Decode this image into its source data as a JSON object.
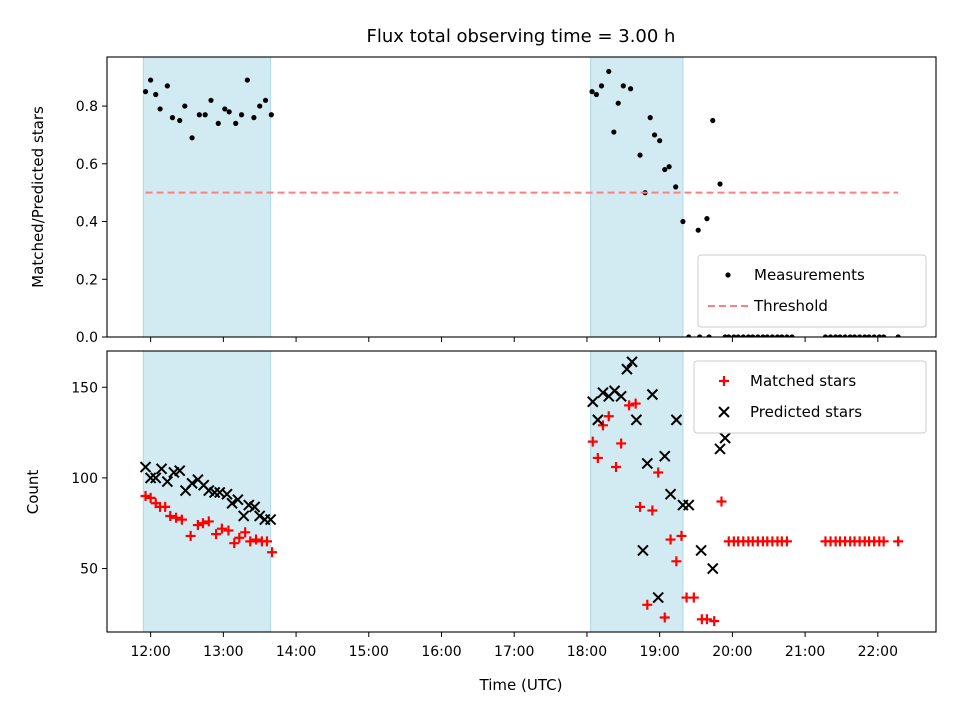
{
  "chart_data": [
    {
      "type": "scatter",
      "title": "Flux total observing time = 3.00 h",
      "ylabel": "Matched/Predicted stars",
      "xlim": [
        11.4,
        22.8
      ],
      "ylim": [
        0.0,
        0.97
      ],
      "yticks": [
        "0.0",
        "0.2",
        "0.4",
        "0.6",
        "0.8"
      ],
      "ytick_values": [
        0.0,
        0.2,
        0.4,
        0.6,
        0.8
      ],
      "shaded_intervals": [
        [
          11.9,
          13.65
        ],
        [
          18.05,
          19.32
        ]
      ],
      "shade_color": "#add8e6",
      "legend_position": "lower right",
      "series": [
        {
          "name": "Measurements",
          "marker": "dot",
          "color": "#000000",
          "x": [
            11.93,
            12.0,
            12.07,
            12.13,
            12.23,
            12.3,
            12.4,
            12.47,
            12.57,
            12.67,
            12.75,
            12.83,
            12.93,
            13.02,
            13.08,
            13.17,
            13.25,
            13.33,
            13.42,
            13.5,
            13.58,
            13.66,
            18.07,
            18.13,
            18.2,
            18.3,
            18.37,
            18.43,
            18.5,
            18.6,
            18.73,
            18.8,
            18.87,
            18.93,
            19.0,
            19.07,
            19.13,
            19.22,
            19.32,
            19.4,
            19.53,
            19.65,
            19.73,
            19.83,
            19.9
          ],
          "y": [
            0.85,
            0.89,
            0.84,
            0.79,
            0.87,
            0.76,
            0.75,
            0.8,
            0.69,
            0.77,
            0.77,
            0.82,
            0.74,
            0.79,
            0.78,
            0.74,
            0.77,
            0.89,
            0.76,
            0.8,
            0.82,
            0.77,
            0.85,
            0.84,
            0.87,
            0.92,
            0.71,
            0.81,
            0.87,
            0.86,
            0.63,
            0.5,
            0.76,
            0.7,
            0.68,
            0.58,
            0.59,
            0.52,
            0.4,
            0.0,
            0.37,
            0.41,
            0.75,
            0.53,
            0.0
          ]
        },
        {
          "name": "Measurements",
          "marker": "dot",
          "color": "#000000",
          "x": [
            19.55,
            19.68,
            19.95,
            20.02,
            20.08,
            20.15,
            20.22,
            20.28,
            20.35,
            20.42,
            20.48,
            20.55,
            20.62,
            20.68,
            20.75,
            20.82,
            21.28,
            21.35,
            21.42,
            21.48,
            21.55,
            21.62,
            21.68,
            21.75,
            21.82,
            21.88,
            21.95,
            22.02,
            22.08,
            22.28
          ],
          "y": [
            0,
            0,
            0,
            0,
            0,
            0,
            0,
            0,
            0,
            0,
            0,
            0,
            0,
            0,
            0,
            0,
            0,
            0,
            0,
            0,
            0,
            0,
            0,
            0,
            0,
            0,
            0,
            0,
            0,
            0
          ],
          "legend": false
        },
        {
          "name": "Threshold",
          "marker": "dashed-line",
          "color": "#ff7f7f",
          "x": [
            11.93,
            22.28
          ],
          "y": [
            0.5,
            0.5
          ]
        }
      ]
    },
    {
      "type": "scatter",
      "xlabel": "Time (UTC)",
      "ylabel": "Count",
      "xlim": [
        11.4,
        22.8
      ],
      "ylim": [
        15,
        170
      ],
      "yticks": [
        "50",
        "100",
        "150"
      ],
      "ytick_values": [
        50,
        100,
        150
      ],
      "xticks": [
        "12:00",
        "13:00",
        "14:00",
        "15:00",
        "16:00",
        "17:00",
        "18:00",
        "19:00",
        "20:00",
        "21:00",
        "22:00"
      ],
      "xtick_values": [
        12,
        13,
        14,
        15,
        16,
        17,
        18,
        19,
        20,
        21,
        22
      ],
      "shaded_intervals": [
        [
          11.9,
          13.65
        ],
        [
          18.05,
          19.32
        ]
      ],
      "shade_color": "#add8e6",
      "legend_position": "top right",
      "series": [
        {
          "name": "Matched stars",
          "marker": "plus",
          "color": "#ff0000",
          "x": [
            11.93,
            12.0,
            12.07,
            12.13,
            12.2,
            12.27,
            12.35,
            12.43,
            12.55,
            12.65,
            12.72,
            12.8,
            12.9,
            12.98,
            13.07,
            13.15,
            13.22,
            13.3,
            13.37,
            13.45,
            13.53,
            13.6,
            13.67,
            18.08,
            18.15,
            18.22,
            18.3,
            18.4,
            18.47,
            18.58,
            18.67,
            18.73,
            18.83,
            18.9,
            18.98,
            19.07,
            19.15,
            19.23,
            19.3,
            19.37,
            19.47,
            19.58,
            19.65,
            19.75,
            19.85,
            19.95,
            20.02,
            20.08,
            20.15,
            20.22,
            20.28,
            20.35,
            20.42,
            20.48,
            20.55,
            20.62,
            20.68,
            20.75,
            21.28,
            21.35,
            21.42,
            21.48,
            21.55,
            21.62,
            21.68,
            21.75,
            21.82,
            21.88,
            21.95,
            22.02,
            22.08,
            22.28
          ],
          "y": [
            90,
            89,
            86,
            84,
            84,
            79,
            78,
            77,
            68,
            74,
            75,
            76,
            69,
            72,
            71,
            64,
            67,
            70,
            65,
            66,
            65,
            65,
            59,
            120,
            111,
            129,
            134,
            106,
            119,
            140,
            141,
            84,
            30,
            82,
            103,
            23,
            66,
            54,
            68,
            34,
            34,
            22,
            22,
            21,
            87,
            65,
            65,
            65,
            65,
            65,
            65,
            65,
            65,
            65,
            65,
            65,
            65,
            65,
            65,
            65,
            65,
            65,
            65,
            65,
            65,
            65,
            65,
            65,
            65,
            65,
            65,
            65
          ]
        },
        {
          "name": "Predicted stars",
          "marker": "x",
          "color": "#000000",
          "x": [
            11.93,
            12.0,
            12.07,
            12.15,
            12.23,
            12.32,
            12.4,
            12.48,
            12.57,
            12.65,
            12.73,
            12.8,
            12.88,
            12.95,
            13.05,
            13.12,
            13.2,
            13.28,
            13.35,
            13.43,
            13.5,
            13.57,
            13.65,
            18.08,
            18.15,
            18.22,
            18.3,
            18.38,
            18.47,
            18.55,
            18.62,
            18.68,
            18.77,
            18.83,
            18.9,
            18.98,
            19.07,
            19.15,
            19.23,
            19.32,
            19.4,
            19.57,
            19.73,
            19.83,
            19.9
          ],
          "y": [
            106,
            100,
            100,
            105,
            98,
            103,
            104,
            93,
            97,
            99,
            96,
            93,
            92,
            92,
            91,
            86,
            88,
            79,
            85,
            84,
            79,
            77,
            77,
            142,
            132,
            147,
            145,
            148,
            145,
            160,
            164,
            132,
            60,
            108,
            146,
            34,
            112,
            91,
            132,
            85,
            85,
            60,
            50,
            116,
            122
          ]
        }
      ]
    }
  ]
}
